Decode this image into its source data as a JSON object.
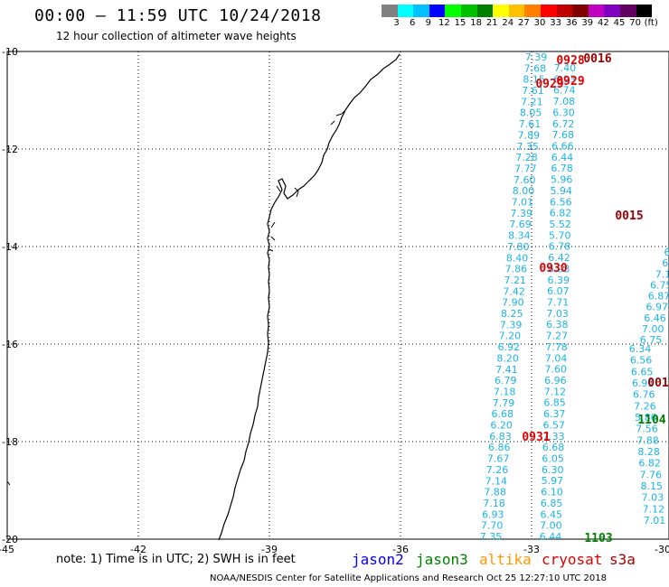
{
  "title": "00:00 — 11:59 UTC 10/24/2018",
  "subtitle": "12 hour collection of altimeter wave heights",
  "colorbar": {
    "colors": [
      "#808080",
      "#00ffff",
      "#00c0ff",
      "#0000ff",
      "#00ff00",
      "#00c000",
      "#008000",
      "#ffff00",
      "#ffc000",
      "#ff8000",
      "#ff0000",
      "#c00000",
      "#800000",
      "#c000c0",
      "#8000c0",
      "#600060",
      "#000000"
    ],
    "labels": [
      "3",
      "6",
      "9",
      "12",
      "15",
      "18",
      "21",
      "24",
      "27",
      "30",
      "33",
      "36",
      "39",
      "42",
      "45",
      "70",
      "(ft)"
    ]
  },
  "axes": {
    "x_ticks": [
      "-45",
      "-42",
      "-39",
      "-36",
      "-33",
      "-30"
    ],
    "y_ticks": [
      "-10",
      "-12",
      "-14",
      "-16",
      "-18",
      "-20"
    ]
  },
  "tracks": [
    {
      "satellite": "jason2",
      "color": "#1cb4e6",
      "values": [
        "7.39",
        "7.68",
        "8.15",
        "7.61",
        "7.21",
        "8.05",
        "7.61",
        "7.89",
        "7.35",
        "7.28",
        "7.77",
        "7.60",
        "8.00",
        "7.01",
        "7.39",
        "7.69",
        "8.34",
        "7.80",
        "8.40",
        "7.86",
        "7.21",
        "7.42",
        "7.90",
        "8.25",
        "7.39",
        "7.20",
        "6.92",
        "8.20",
        "7.41",
        "6.79",
        "7.18",
        "7.79",
        "6.68",
        "6.20",
        "6.83",
        "6.86",
        "7.67",
        "7.26",
        "7.14",
        "7.88",
        "7.18",
        "6.93",
        "7.70",
        "7.35"
      ]
    },
    {
      "satellite": "jason2",
      "color": "#1cb4e6",
      "values": [
        "7.40",
        "6.93",
        "6.74",
        "7.08",
        "6.30",
        "6.72",
        "7.68",
        "6.66",
        "6.44",
        "6.78",
        "5.96",
        "5.94",
        "6.56",
        "6.82",
        "5.52",
        "5.70",
        "6.78",
        "6.42",
        "6.93",
        "6.39",
        "6.07",
        "7.71",
        "7.03",
        "6.38",
        "7.27",
        "7.78",
        "7.04",
        "7.60",
        "6.96",
        "7.12",
        "6.85",
        "6.37",
        "6.57",
        "7.33",
        "6.68",
        "6.05",
        "6.30",
        "5.97",
        "6.10",
        "6.85",
        "6.45",
        "7.00",
        "6.44"
      ]
    },
    {
      "satellite": "jason2",
      "color": "#1cb4e6",
      "values": [
        "6.34",
        "6.56",
        "6.65",
        "6.91",
        "6.76",
        "7.26",
        "5.86",
        "7.56",
        "7.88",
        "8.28",
        "6.82",
        "7.76",
        "8.15",
        "7.03",
        "7.12",
        "7.01"
      ]
    },
    {
      "satellite": "jason2",
      "color": "#1cb4e6",
      "values": [
        "6",
        "6",
        "7.1",
        "6.75",
        "6.87",
        "6.97",
        "6.46",
        "7.00",
        "6.75"
      ]
    }
  ],
  "time_labels": [
    {
      "text": "0928",
      "color": "#e00000"
    },
    {
      "text": "0016",
      "color": "#a00000"
    },
    {
      "text": "0929",
      "color": "#e00000"
    },
    {
      "text": "0929",
      "color": "#e00000"
    },
    {
      "text": "0015",
      "color": "#a00000"
    },
    {
      "text": "0930",
      "color": "#e00000"
    },
    {
      "text": "0931",
      "color": "#e00000"
    },
    {
      "text": "001",
      "color": "#a00000"
    },
    {
      "text": "1104",
      "color": "#008000"
    },
    {
      "text": "1103",
      "color": "#008000"
    }
  ],
  "note": "note: 1) Time is in UTC; 2) SWH is in feet",
  "legend": [
    {
      "name": "jason2",
      "color": "#0000ff"
    },
    {
      "name": "jason3",
      "color": "#008000"
    },
    {
      "name": "altika",
      "color": "#ff9900"
    },
    {
      "name": "cryosat",
      "color": "#e00000"
    },
    {
      "name": "s3a",
      "color": "#a00000"
    }
  ],
  "footer": "NOAA/NESDIS Center for Satellite Applications and Research   Oct 25 12:27:10 UTC 2018"
}
